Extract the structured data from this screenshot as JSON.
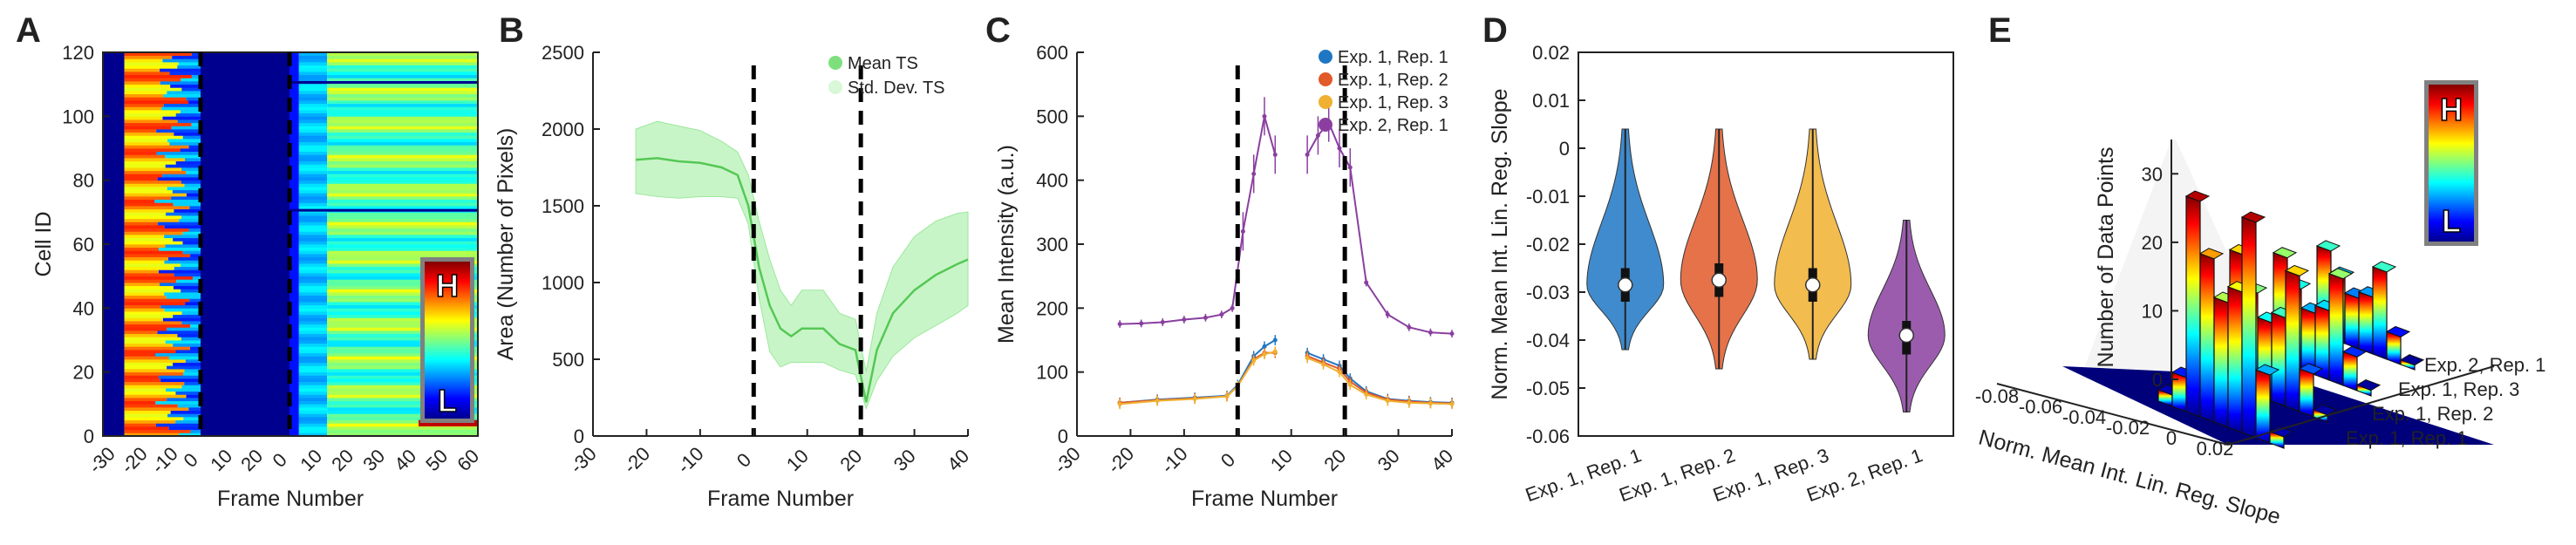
{
  "panels": {
    "A": {
      "label": "A",
      "xlabel": "Frame Number",
      "ylabel": "Cell ID",
      "xticks": [
        "-30",
        "-20",
        "-10",
        "0",
        "10",
        "20",
        "0",
        "10",
        "20",
        "30",
        "40",
        "50",
        "60"
      ],
      "yticks": [
        0,
        20,
        40,
        60,
        80,
        100,
        120
      ],
      "ylim": [
        0,
        120
      ],
      "legend_high": "H",
      "legend_low": "L"
    },
    "B": {
      "label": "B",
      "xlabel": "Frame Number",
      "ylabel": "Area (Number of Pixels)",
      "xticks": [
        -30,
        -20,
        -10,
        0,
        10,
        20,
        30,
        40
      ],
      "yticks": [
        0,
        500,
        1000,
        1500,
        2000,
        2500
      ],
      "legend": [
        "Mean TS",
        "Std. Dev. TS"
      ]
    },
    "C": {
      "label": "C",
      "xlabel": "Frame Number",
      "ylabel": "Mean Intensity (a.u.)",
      "xticks": [
        -30,
        -20,
        -10,
        0,
        10,
        20,
        30,
        40
      ],
      "yticks": [
        0,
        100,
        200,
        300,
        400,
        500,
        600
      ],
      "legend": [
        "Exp. 1, Rep. 1",
        "Exp. 1, Rep. 2",
        "Exp. 1, Rep. 3",
        "Exp. 2, Rep. 1"
      ]
    },
    "D": {
      "label": "D",
      "ylabel": "Norm. Mean Int. Lin. Reg. Slope",
      "yticks": [
        "0.02",
        "0.01",
        "0",
        "-0.01",
        "-0.02",
        "-0.03",
        "-0.04",
        "-0.05",
        "-0.06"
      ],
      "categories": [
        "Exp. 1, Rep. 1",
        "Exp. 1, Rep. 2",
        "Exp. 1, Rep. 3",
        "Exp. 2, Rep. 1"
      ]
    },
    "E": {
      "label": "E",
      "zlabel": "Number of Data Points",
      "xlabel": "Norm. Mean Int. Lin. Reg. Slope",
      "zticks": [
        0,
        10,
        20,
        30
      ],
      "xticks": [
        "-0.08",
        "-0.06",
        "-0.04",
        "-0.02",
        "0",
        "0.02"
      ],
      "ycats": [
        "Exp. 1, Rep. 1",
        "Exp. 1, Rep. 2",
        "Exp. 1, Rep. 3",
        "Exp. 2, Rep. 1"
      ],
      "legend_high": "H",
      "legend_low": "L"
    }
  },
  "chart_data": [
    {
      "type": "heatmap",
      "panel": "A",
      "xlabel": "Frame Number",
      "ylabel": "Cell ID",
      "ylim": [
        0,
        120
      ],
      "segments": [
        "frames -30 to 0 (before first dashed line)",
        "frames 0 to 20 (between dashed lines)",
        "frames 0 to 60 (after second dashed line)"
      ],
      "colormap": "jet"
    },
    {
      "type": "line",
      "panel": "B",
      "xlabel": "Frame Number",
      "ylabel": "Area (Number of Pixels)",
      "xlim": [
        -30,
        40
      ],
      "ylim": [
        0,
        2500
      ],
      "series": [
        {
          "name": "Mean TS",
          "x": [
            -22,
            -18,
            -14,
            -10,
            -6,
            -3,
            -1,
            1,
            3,
            5,
            7,
            9,
            13,
            16,
            19,
            21,
            23,
            26,
            30,
            34,
            38,
            40
          ],
          "values": [
            1800,
            1810,
            1790,
            1780,
            1750,
            1700,
            1500,
            1100,
            850,
            700,
            650,
            700,
            700,
            600,
            560,
            220,
            560,
            800,
            950,
            1050,
            1120,
            1150
          ],
          "color": "#7de07d"
        },
        {
          "name": "Std. Dev. TS",
          "x": [
            -22,
            -18,
            -14,
            -10,
            -6,
            -3,
            -1,
            1,
            3,
            5,
            7,
            9,
            13,
            16,
            19,
            21,
            23,
            26,
            30,
            34,
            38,
            40
          ],
          "upper": [
            2000,
            2050,
            2020,
            1990,
            1920,
            1850,
            1700,
            1400,
            1150,
            950,
            850,
            950,
            950,
            800,
            760,
            420,
            800,
            1100,
            1300,
            1400,
            1450,
            1460
          ],
          "lower": [
            1580,
            1560,
            1550,
            1560,
            1560,
            1550,
            1380,
            900,
            550,
            450,
            480,
            480,
            480,
            430,
            400,
            180,
            360,
            520,
            640,
            720,
            800,
            850
          ],
          "color": "#c8f5c8"
        }
      ],
      "dashed_x": [
        0,
        20
      ]
    },
    {
      "type": "line",
      "panel": "C",
      "xlabel": "Frame Number",
      "ylabel": "Mean Intensity (a.u.)",
      "xlim": [
        -30,
        40
      ],
      "ylim": [
        0,
        600
      ],
      "series": [
        {
          "name": "Exp. 1, Rep. 1",
          "color": "#1f77c4",
          "x": [
            -22,
            -15,
            -8,
            -2,
            0,
            3,
            5,
            7,
            13,
            16,
            19,
            21,
            24,
            28,
            32,
            36,
            40
          ],
          "values": [
            52,
            57,
            60,
            63,
            80,
            125,
            140,
            150,
            130,
            120,
            110,
            90,
            70,
            58,
            55,
            53,
            52
          ]
        },
        {
          "name": "Exp. 1, Rep. 2",
          "color": "#e2592a",
          "x": [
            -22,
            -15,
            -8,
            -2,
            0,
            3,
            5,
            7,
            13,
            16,
            19,
            21,
            24,
            28,
            32,
            36,
            40
          ],
          "values": [
            52,
            56,
            59,
            62,
            78,
            120,
            130,
            130,
            125,
            115,
            105,
            85,
            68,
            57,
            54,
            52,
            51
          ]
        },
        {
          "name": "Exp. 1, Rep. 3",
          "color": "#f0b030",
          "x": [
            -22,
            -15,
            -8,
            -2,
            0,
            3,
            5,
            7,
            13,
            16,
            19,
            21,
            24,
            28,
            32,
            36,
            40
          ],
          "values": [
            50,
            55,
            58,
            62,
            78,
            118,
            128,
            132,
            122,
            112,
            100,
            80,
            65,
            55,
            52,
            51,
            50
          ]
        },
        {
          "name": "Exp. 2, Rep. 1",
          "color": "#8a3fa0",
          "x": [
            -22,
            -18,
            -14,
            -10,
            -6,
            -3,
            -1,
            1,
            3,
            5,
            7,
            13,
            15,
            17,
            19,
            21,
            24,
            28,
            32,
            36,
            40
          ],
          "values": [
            175,
            176,
            178,
            182,
            185,
            190,
            200,
            320,
            410,
            500,
            440,
            440,
            470,
            490,
            450,
            420,
            240,
            190,
            170,
            162,
            160
          ]
        }
      ],
      "dashed_x": [
        0,
        20
      ]
    },
    {
      "type": "violin",
      "panel": "D",
      "ylabel": "Norm. Mean Int. Lin. Reg. Slope",
      "ylim": [
        -0.06,
        0.02
      ],
      "categories": [
        "Exp. 1, Rep. 1",
        "Exp. 1, Rep. 2",
        "Exp. 1, Rep. 3",
        "Exp. 2, Rep. 1"
      ],
      "medians": [
        -0.0285,
        -0.0275,
        -0.0285,
        -0.039
      ],
      "q1": [
        -0.032,
        -0.031,
        -0.032,
        -0.043
      ],
      "q3": [
        -0.025,
        -0.024,
        -0.025,
        -0.036
      ],
      "min": [
        -0.042,
        -0.046,
        -0.044,
        -0.055
      ],
      "max": [
        0.004,
        0.004,
        0.004,
        -0.015
      ],
      "colors": [
        "#1f77c4",
        "#e2592a",
        "#f0b030",
        "#8a3fa0"
      ]
    },
    {
      "type": "bar3d",
      "panel": "E",
      "zlabel": "Number of Data Points",
      "xlabel": "Norm. Mean Int. Lin. Reg. Slope",
      "zlim": [
        0,
        35
      ],
      "xlim": [
        -0.08,
        0.03
      ],
      "ycats": [
        "Exp. 1, Rep. 1",
        "Exp. 1, Rep. 2",
        "Exp. 1, Rep. 3",
        "Exp. 2, Rep. 1"
      ]
    }
  ]
}
